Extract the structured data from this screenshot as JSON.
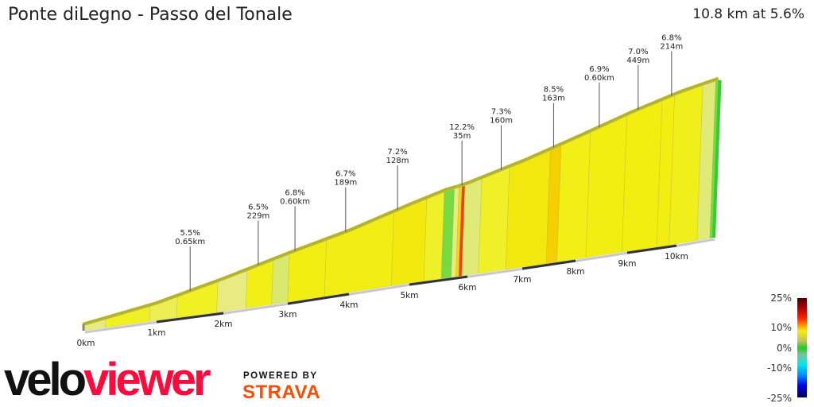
{
  "header": {
    "title": "Ponte diLegno - Passo del Tonale",
    "summary": "10.8 km at 5.6%"
  },
  "chart_data": {
    "type": "area",
    "title": "Ponte diLegno - Passo del Tonale",
    "x_unit": "km",
    "xlim": [
      0,
      10.8
    ],
    "x_ticks": [
      "0km",
      "1km",
      "2km",
      "3km",
      "4km",
      "5km",
      "6km",
      "7km",
      "8km",
      "9km",
      "10km"
    ],
    "elevation_gain_m": {
      "km": [
        0,
        1,
        2,
        3,
        4,
        5,
        5.6,
        5.85,
        6,
        7,
        8,
        9,
        10,
        10.8
      ],
      "elev": [
        0,
        43,
        105,
        167,
        220,
        285,
        322,
        330,
        338,
        394,
        456,
        518,
        571,
        596
      ]
    },
    "segments": [
      {
        "from": 0,
        "to": 0.3,
        "grade": 4
      },
      {
        "from": 0.3,
        "to": 0.9,
        "grade": 5.5
      },
      {
        "from": 0.9,
        "to": 1.3,
        "grade": 4.5
      },
      {
        "from": 1.3,
        "to": 1.9,
        "grade": 5.5
      },
      {
        "from": 1.9,
        "to": 2.35,
        "grade": 4
      },
      {
        "from": 2.35,
        "to": 2.75,
        "grade": 6.5
      },
      {
        "from": 2.75,
        "to": 3.0,
        "grade": 3
      },
      {
        "from": 3.0,
        "to": 3.6,
        "grade": 6.8
      },
      {
        "from": 3.6,
        "to": 4.7,
        "grade": 6.7
      },
      {
        "from": 4.7,
        "to": 5.25,
        "grade": 7.2
      },
      {
        "from": 5.25,
        "to": 5.55,
        "grade": 5
      },
      {
        "from": 5.55,
        "to": 5.72,
        "grade": 1
      },
      {
        "from": 5.72,
        "to": 5.8,
        "grade": 4
      },
      {
        "from": 5.8,
        "to": 5.85,
        "grade": 8
      },
      {
        "from": 5.85,
        "to": 5.9,
        "grade": 12.2
      },
      {
        "from": 5.9,
        "to": 6.2,
        "grade": 3.5
      },
      {
        "from": 6.2,
        "to": 6.7,
        "grade": 5
      },
      {
        "from": 6.7,
        "to": 7.45,
        "grade": 7.3
      },
      {
        "from": 7.45,
        "to": 7.65,
        "grade": 8.5
      },
      {
        "from": 7.65,
        "to": 8.2,
        "grade": 6.5
      },
      {
        "from": 8.2,
        "to": 8.9,
        "grade": 6.9
      },
      {
        "from": 8.9,
        "to": 9.6,
        "grade": 7.0
      },
      {
        "from": 9.6,
        "to": 9.85,
        "grade": 6.8
      },
      {
        "from": 9.85,
        "to": 10.45,
        "grade": 6.2
      },
      {
        "from": 10.45,
        "to": 10.73,
        "grade": 3.5
      },
      {
        "from": 10.73,
        "to": 10.8,
        "grade": 1
      }
    ],
    "annotations": [
      {
        "km": 1.49,
        "grade": "5.5%",
        "length": "0.65km"
      },
      {
        "km": 2.52,
        "grade": "6.5%",
        "length": "229m"
      },
      {
        "km": 3.09,
        "grade": "6.8%",
        "length": "0.60km"
      },
      {
        "km": 3.91,
        "grade": "6.7%",
        "length": "189m"
      },
      {
        "km": 4.76,
        "grade": "7.2%",
        "length": "128m"
      },
      {
        "km": 5.85,
        "grade": "12.2%",
        "length": "35m"
      },
      {
        "km": 6.55,
        "grade": "7.3%",
        "length": "160m"
      },
      {
        "km": 7.51,
        "grade": "8.5%",
        "length": "163m"
      },
      {
        "km": 8.37,
        "grade": "6.9%",
        "length": "0.60km"
      },
      {
        "km": 9.12,
        "grade": "7.0%",
        "length": "449m"
      },
      {
        "km": 9.79,
        "grade": "6.8%",
        "length": "214m"
      }
    ],
    "legend": {
      "labels": [
        "25%",
        "10%",
        "0%",
        "-10%",
        "-25%"
      ]
    }
  },
  "branding": {
    "logo_left": "velo",
    "logo_right": "viewer",
    "powered_by": "POWERED BY",
    "strava": "STRAVA"
  }
}
